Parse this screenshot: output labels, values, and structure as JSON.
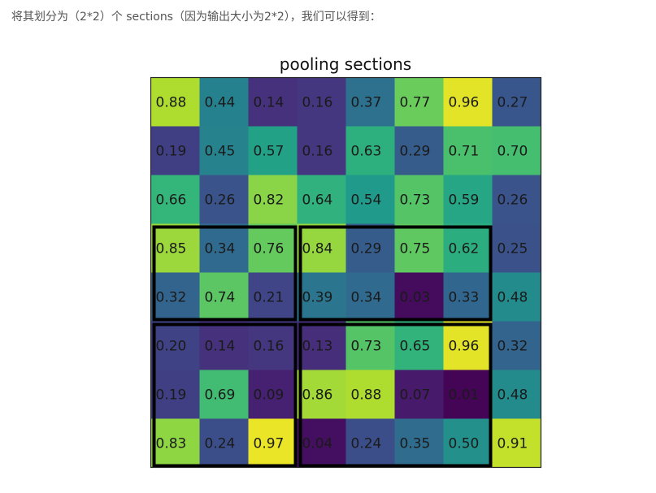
{
  "intro_text": "将其划分为（2*2）个 sections（因为输出大小为2*2），我们可以得到：",
  "figure": {
    "title": "pooling sections",
    "values": [
      [
        "0.88",
        "0.44",
        "0.14",
        "0.16",
        "0.37",
        "0.77",
        "0.96",
        "0.27"
      ],
      [
        "0.19",
        "0.45",
        "0.57",
        "0.16",
        "0.63",
        "0.29",
        "0.71",
        "0.70"
      ],
      [
        "0.66",
        "0.26",
        "0.82",
        "0.64",
        "0.54",
        "0.73",
        "0.59",
        "0.26"
      ],
      [
        "0.85",
        "0.34",
        "0.76",
        "0.84",
        "0.29",
        "0.75",
        "0.62",
        "0.25"
      ],
      [
        "0.32",
        "0.74",
        "0.21",
        "0.39",
        "0.34",
        "0.03",
        "0.33",
        "0.48"
      ],
      [
        "0.20",
        "0.14",
        "0.16",
        "0.13",
        "0.73",
        "0.65",
        "0.96",
        "0.32"
      ],
      [
        "0.19",
        "0.69",
        "0.09",
        "0.86",
        "0.88",
        "0.07",
        "0.01",
        "0.48"
      ],
      [
        "0.83",
        "0.24",
        "0.97",
        "0.04",
        "0.24",
        "0.35",
        "0.50",
        "0.91"
      ]
    ],
    "colormap": [
      "#440154",
      "#482878",
      "#3e4989",
      "#31688e",
      "#26828e",
      "#1f9e89",
      "#35b779",
      "#6ece58",
      "#b5de2b",
      "#fde725"
    ],
    "sections": [
      {
        "rows": [
          3,
          4
        ],
        "cols": [
          0,
          2
        ]
      },
      {
        "rows": [
          3,
          4
        ],
        "cols": [
          3,
          6
        ]
      },
      {
        "rows": [
          5,
          7
        ],
        "cols": [
          0,
          2
        ]
      },
      {
        "rows": [
          5,
          7
        ],
        "cols": [
          3,
          6
        ]
      }
    ]
  }
}
